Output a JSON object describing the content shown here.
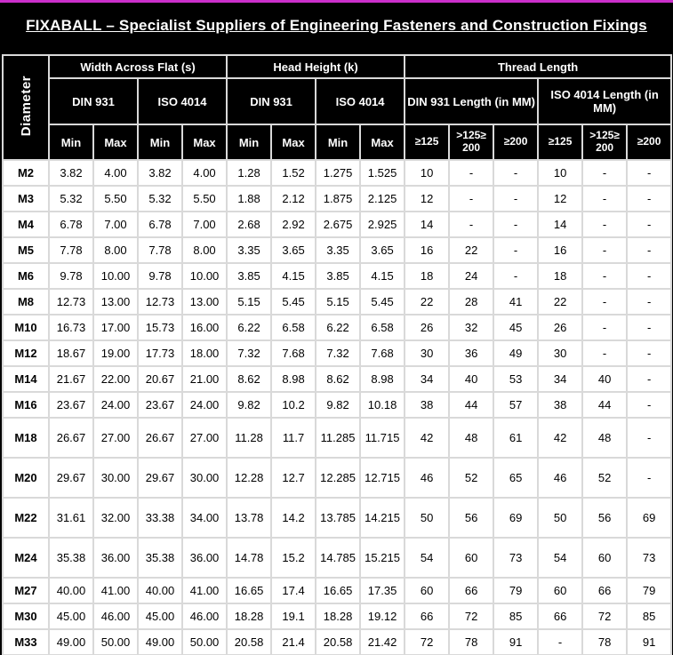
{
  "title": "FIXABALL – Specialist Suppliers of Engineering Fasteners and Construction Fixings",
  "colors": {
    "accent_top": "#cb2fcb",
    "header_bg": "#000000",
    "header_text": "#ffffff",
    "grid": "#d9d9d9",
    "bottom_bar": "#7f7f7f"
  },
  "table": {
    "diameter_header": "Diameter",
    "groups": [
      {
        "label": "Width Across Flat (s)",
        "subgroups": [
          {
            "label": "DIN 931",
            "cols": [
              "Min",
              "Max"
            ]
          },
          {
            "label": "ISO 4014",
            "cols": [
              "Min",
              "Max"
            ]
          }
        ]
      },
      {
        "label": "Head Height (k)",
        "subgroups": [
          {
            "label": "DIN 931",
            "cols": [
              "Min",
              "Max"
            ]
          },
          {
            "label": "ISO 4014",
            "cols": [
              "Min",
              "Max"
            ]
          }
        ]
      },
      {
        "label": "Thread Length",
        "subgroups": [
          {
            "label": "DIN 931 Length (in MM)",
            "cols": [
              "≥125",
              ">125≥ 200",
              "≥200"
            ]
          },
          {
            "label": "ISO 4014  Length (in MM)",
            "cols": [
              "≥125",
              ">125≥ 200",
              "≥200"
            ]
          }
        ]
      }
    ],
    "rows": [
      {
        "diameter": "M2",
        "tall": false,
        "values": [
          "3.82",
          "4.00",
          "3.82",
          "4.00",
          "1.28",
          "1.52",
          "1.275",
          "1.525",
          "10",
          "-",
          "-",
          "10",
          "-",
          "-"
        ]
      },
      {
        "diameter": "M3",
        "tall": false,
        "values": [
          "5.32",
          "5.50",
          "5.32",
          "5.50",
          "1.88",
          "2.12",
          "1.875",
          "2.125",
          "12",
          "-",
          "-",
          "12",
          "-",
          "-"
        ]
      },
      {
        "diameter": "M4",
        "tall": false,
        "values": [
          "6.78",
          "7.00",
          "6.78",
          "7.00",
          "2.68",
          "2.92",
          "2.675",
          "2.925",
          "14",
          "-",
          "-",
          "14",
          "-",
          "-"
        ]
      },
      {
        "diameter": "M5",
        "tall": false,
        "values": [
          "7.78",
          "8.00",
          "7.78",
          "8.00",
          "3.35",
          "3.65",
          "3.35",
          "3.65",
          "16",
          "22",
          "-",
          "16",
          "-",
          "-"
        ]
      },
      {
        "diameter": "M6",
        "tall": false,
        "values": [
          "9.78",
          "10.00",
          "9.78",
          "10.00",
          "3.85",
          "4.15",
          "3.85",
          "4.15",
          "18",
          "24",
          "-",
          "18",
          "-",
          "-"
        ]
      },
      {
        "diameter": "M8",
        "tall": false,
        "values": [
          "12.73",
          "13.00",
          "12.73",
          "13.00",
          "5.15",
          "5.45",
          "5.15",
          "5.45",
          "22",
          "28",
          "41",
          "22",
          "-",
          "-"
        ]
      },
      {
        "diameter": "M10",
        "tall": false,
        "values": [
          "16.73",
          "17.00",
          "15.73",
          "16.00",
          "6.22",
          "6.58",
          "6.22",
          "6.58",
          "26",
          "32",
          "45",
          "26",
          "-",
          "-"
        ]
      },
      {
        "diameter": "M12",
        "tall": false,
        "values": [
          "18.67",
          "19.00",
          "17.73",
          "18.00",
          "7.32",
          "7.68",
          "7.32",
          "7.68",
          "30",
          "36",
          "49",
          "30",
          "-",
          "-"
        ]
      },
      {
        "diameter": "M14",
        "tall": false,
        "values": [
          "21.67",
          "22.00",
          "20.67",
          "21.00",
          "8.62",
          "8.98",
          "8.62",
          "8.98",
          "34",
          "40",
          "53",
          "34",
          "40",
          "-"
        ]
      },
      {
        "diameter": "M16",
        "tall": false,
        "values": [
          "23.67",
          "24.00",
          "23.67",
          "24.00",
          "9.82",
          "10.2",
          "9.82",
          "10.18",
          "38",
          "44",
          "57",
          "38",
          "44",
          "-"
        ]
      },
      {
        "diameter": "M18",
        "tall": true,
        "values": [
          "26.67",
          "27.00",
          "26.67",
          "27.00",
          "11.28",
          "11.7",
          "11.285",
          "11.715",
          "42",
          "48",
          "61",
          "42",
          "48",
          "-"
        ]
      },
      {
        "diameter": "M20",
        "tall": true,
        "values": [
          "29.67",
          "30.00",
          "29.67",
          "30.00",
          "12.28",
          "12.7",
          "12.285",
          "12.715",
          "46",
          "52",
          "65",
          "46",
          "52",
          "-"
        ]
      },
      {
        "diameter": "M22",
        "tall": true,
        "values": [
          "31.61",
          "32.00",
          "33.38",
          "34.00",
          "13.78",
          "14.2",
          "13.785",
          "14.215",
          "50",
          "56",
          "69",
          "50",
          "56",
          "69"
        ]
      },
      {
        "diameter": "M24",
        "tall": true,
        "values": [
          "35.38",
          "36.00",
          "35.38",
          "36.00",
          "14.78",
          "15.2",
          "14.785",
          "15.215",
          "54",
          "60",
          "73",
          "54",
          "60",
          "73"
        ]
      },
      {
        "diameter": "M27",
        "tall": false,
        "values": [
          "40.00",
          "41.00",
          "40.00",
          "41.00",
          "16.65",
          "17.4",
          "16.65",
          "17.35",
          "60",
          "66",
          "79",
          "60",
          "66",
          "79"
        ]
      },
      {
        "diameter": "M30",
        "tall": false,
        "values": [
          "45.00",
          "46.00",
          "45.00",
          "46.00",
          "18.28",
          "19.1",
          "18.28",
          "19.12",
          "66",
          "72",
          "85",
          "66",
          "72",
          "85"
        ]
      },
      {
        "diameter": "M33",
        "tall": false,
        "values": [
          "49.00",
          "50.00",
          "49.00",
          "50.00",
          "20.58",
          "21.4",
          "20.58",
          "21.42",
          "72",
          "78",
          "91",
          "-",
          "78",
          "91"
        ]
      }
    ]
  }
}
